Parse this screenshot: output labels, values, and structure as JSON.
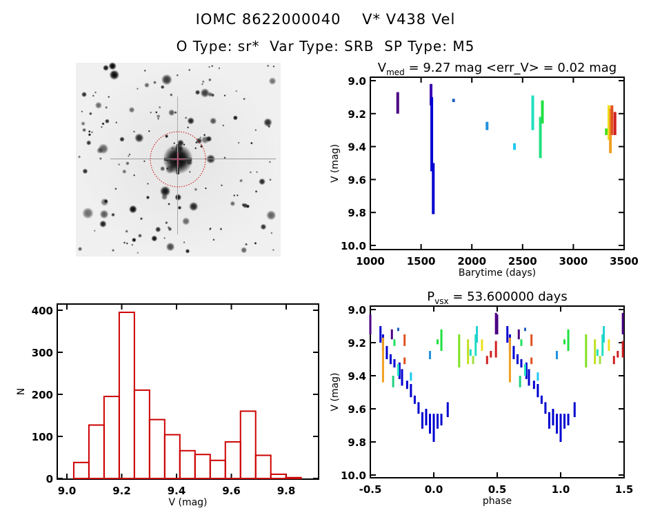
{
  "header": {
    "line1": "IOMC 8622000040    V* V438 Vel",
    "line2": "O Type: sr*  Var Type: SRB  SP Type: M5"
  },
  "sky_image": {
    "description_icon": "star-field-finding-chart",
    "circle_color": "#cc0000"
  },
  "chart_data": [
    {
      "type": "scatter",
      "title": "V_med = 9.27 mag <err_V> = 0.02 mag",
      "title_parts": {
        "main": "V",
        "sub": "med",
        "rest": " = 9.27 mag <err_V> = 0.02 mag"
      },
      "xlabel": "Barytime (days)",
      "ylabel": "V (mag)",
      "xlim": [
        1000,
        3500
      ],
      "ylim": [
        10.0,
        9.0
      ],
      "y_inverted": true,
      "xticks": [
        "1000",
        "1500",
        "2000",
        "2500",
        "3000",
        "3500"
      ],
      "yticks": [
        "9.0",
        "9.2",
        "9.4",
        "9.6",
        "9.8",
        "10.0"
      ],
      "segments": [
        {
          "x": 1270,
          "vmin": 9.07,
          "vmax": 9.2,
          "color": "#4b0082"
        },
        {
          "x": 1598,
          "vmin": 9.02,
          "vmax": 9.15,
          "color": "#3a00b0"
        },
        {
          "x": 1605,
          "vmin": 9.1,
          "vmax": 9.55,
          "color": "#0000d0"
        },
        {
          "x": 1620,
          "vmin": 9.5,
          "vmax": 9.81,
          "color": "#0000d0"
        },
        {
          "x": 1820,
          "vmin": 9.11,
          "vmax": 9.13,
          "color": "#2060c0"
        },
        {
          "x": 2150,
          "vmin": 9.25,
          "vmax": 9.3,
          "color": "#2090e0"
        },
        {
          "x": 2420,
          "vmin": 9.38,
          "vmax": 9.42,
          "color": "#20c8f0"
        },
        {
          "x": 2600,
          "vmin": 9.09,
          "vmax": 9.3,
          "color": "#20e0c0"
        },
        {
          "x": 2675,
          "vmin": 9.22,
          "vmax": 9.47,
          "color": "#20e080"
        },
        {
          "x": 2695,
          "vmin": 9.12,
          "vmax": 9.26,
          "color": "#20e040"
        },
        {
          "x": 3325,
          "vmin": 9.29,
          "vmax": 9.33,
          "color": "#40e020"
        },
        {
          "x": 3350,
          "vmin": 9.15,
          "vmax": 9.36,
          "color": "#f0e020"
        },
        {
          "x": 3365,
          "vmin": 9.17,
          "vmax": 9.44,
          "color": "#f0a020"
        },
        {
          "x": 3380,
          "vmin": 9.15,
          "vmax": 9.33,
          "color": "#e05020"
        },
        {
          "x": 3410,
          "vmin": 9.19,
          "vmax": 9.33,
          "color": "#d02020"
        }
      ]
    },
    {
      "type": "bar",
      "title": "",
      "xlabel": "V (mag)",
      "ylabel": "N",
      "xlim": [
        8.98,
        9.92
      ],
      "ylim": [
        0,
        420
      ],
      "xticks": [
        "9.0",
        "9.2",
        "9.4",
        "9.6",
        "9.8"
      ],
      "yticks": [
        "0",
        "100",
        "200",
        "300",
        "400"
      ],
      "bar_color": "#cc0000",
      "bin_start": 9.025,
      "bin_width": 0.0553,
      "values": [
        38,
        127,
        195,
        395,
        210,
        140,
        104,
        66,
        57,
        43,
        87,
        160,
        55,
        10,
        2
      ]
    },
    {
      "type": "scatter",
      "title": "P_vsx = 53.600000 days",
      "title_parts": {
        "main": "P",
        "sub": "vsx",
        "rest": " = 53.600000 days"
      },
      "xlabel": "phase",
      "ylabel": "V (mag)",
      "xlim": [
        -0.5,
        1.5
      ],
      "ylim": [
        10.0,
        9.0
      ],
      "y_inverted": true,
      "xticks": [
        "-0.5",
        "0.0",
        "0.5",
        "1.0",
        "1.5"
      ],
      "yticks": [
        "9.0",
        "9.2",
        "9.4",
        "9.6",
        "9.8",
        "10.0"
      ],
      "segments": [
        {
          "x": -0.42,
          "vmin": 9.1,
          "vmax": 9.2,
          "color": "#0000d0"
        },
        {
          "x": -0.4,
          "vmin": 9.15,
          "vmax": 9.25,
          "color": "#0000d0"
        },
        {
          "x": -0.37,
          "vmin": 9.22,
          "vmax": 9.3,
          "color": "#0000d0"
        },
        {
          "x": -0.34,
          "vmin": 9.27,
          "vmax": 9.33,
          "color": "#0000d0"
        },
        {
          "x": -0.31,
          "vmin": 9.3,
          "vmax": 9.35,
          "color": "#0000d0"
        },
        {
          "x": -0.27,
          "vmin": 9.32,
          "vmax": 9.42,
          "color": "#0000d0"
        },
        {
          "x": -0.25,
          "vmin": 9.36,
          "vmax": 9.46,
          "color": "#0000d0"
        },
        {
          "x": -0.21,
          "vmin": 9.43,
          "vmax": 9.48,
          "color": "#0000d0"
        },
        {
          "x": -0.18,
          "vmin": 9.45,
          "vmax": 9.53,
          "color": "#0000d0"
        },
        {
          "x": -0.15,
          "vmin": 9.52,
          "vmax": 9.57,
          "color": "#0000d0"
        },
        {
          "x": -0.12,
          "vmin": 9.56,
          "vmax": 9.63,
          "color": "#0000d0"
        },
        {
          "x": -0.09,
          "vmin": 9.62,
          "vmax": 9.72,
          "color": "#0000d0"
        },
        {
          "x": -0.06,
          "vmin": 9.6,
          "vmax": 9.7,
          "color": "#0000d0"
        },
        {
          "x": -0.03,
          "vmin": 9.63,
          "vmax": 9.75,
          "color": "#0000d0"
        },
        {
          "x": 0.0,
          "vmin": 9.63,
          "vmax": 9.8,
          "color": "#0000d0"
        },
        {
          "x": 0.03,
          "vmin": 9.63,
          "vmax": 9.72,
          "color": "#0000d0"
        },
        {
          "x": 0.06,
          "vmin": 9.63,
          "vmax": 9.7,
          "color": "#0000d0"
        },
        {
          "x": 0.11,
          "vmin": 9.56,
          "vmax": 9.65,
          "color": "#0000d0"
        },
        {
          "x": -0.5,
          "vmin": 9.03,
          "vmax": 9.15,
          "color": "#4b0082"
        },
        {
          "x": 0.49,
          "vmin": 9.02,
          "vmax": 9.15,
          "color": "#4b0082"
        },
        {
          "x": -0.33,
          "vmin": 9.12,
          "vmax": 9.18,
          "color": "#4b0082"
        },
        {
          "x": -0.4,
          "vmin": 9.17,
          "vmax": 9.44,
          "color": "#f0a020"
        },
        {
          "x": -0.31,
          "vmin": 9.18,
          "vmax": 9.22,
          "color": "#20e060"
        },
        {
          "x": -0.32,
          "vmin": 9.4,
          "vmax": 9.47,
          "color": "#20d080"
        },
        {
          "x": -0.28,
          "vmin": 9.11,
          "vmax": 9.13,
          "color": "#2060c0"
        },
        {
          "x": -0.28,
          "vmin": 9.33,
          "vmax": 9.4,
          "color": "#20e0c0"
        },
        {
          "x": -0.18,
          "vmin": 9.38,
          "vmax": 9.43,
          "color": "#20c8f0"
        },
        {
          "x": -0.23,
          "vmin": 9.15,
          "vmax": 9.22,
          "color": "#e05020"
        },
        {
          "x": -0.23,
          "vmin": 9.29,
          "vmax": 9.33,
          "color": "#e05020"
        },
        {
          "x": -0.03,
          "vmin": 9.25,
          "vmax": 9.3,
          "color": "#2090e0"
        },
        {
          "x": 0.03,
          "vmin": 9.18,
          "vmax": 9.21,
          "color": "#20e040"
        },
        {
          "x": 0.06,
          "vmin": 9.12,
          "vmax": 9.25,
          "color": "#20e040"
        },
        {
          "x": 0.2,
          "vmin": 9.15,
          "vmax": 9.35,
          "color": "#80e020"
        },
        {
          "x": 0.27,
          "vmin": 9.18,
          "vmax": 9.33,
          "color": "#c0e020"
        },
        {
          "x": 0.29,
          "vmin": 9.24,
          "vmax": 9.28,
          "color": "#20e0c0"
        },
        {
          "x": 0.31,
          "vmin": 9.28,
          "vmax": 9.33,
          "color": "#a0e040"
        },
        {
          "x": 0.33,
          "vmin": 9.15,
          "vmax": 9.28,
          "color": "#20e0c0"
        },
        {
          "x": 0.34,
          "vmin": 9.1,
          "vmax": 9.2,
          "color": "#20d0d0"
        },
        {
          "x": 0.38,
          "vmin": 9.18,
          "vmax": 9.25,
          "color": "#f0e020"
        },
        {
          "x": 0.42,
          "vmin": 9.28,
          "vmax": 9.33,
          "color": "#d02020"
        },
        {
          "x": 0.45,
          "vmin": 9.25,
          "vmax": 9.29,
          "color": "#d02020"
        },
        {
          "x": 0.49,
          "vmin": 9.19,
          "vmax": 9.29,
          "color": "#d02020"
        }
      ]
    }
  ]
}
